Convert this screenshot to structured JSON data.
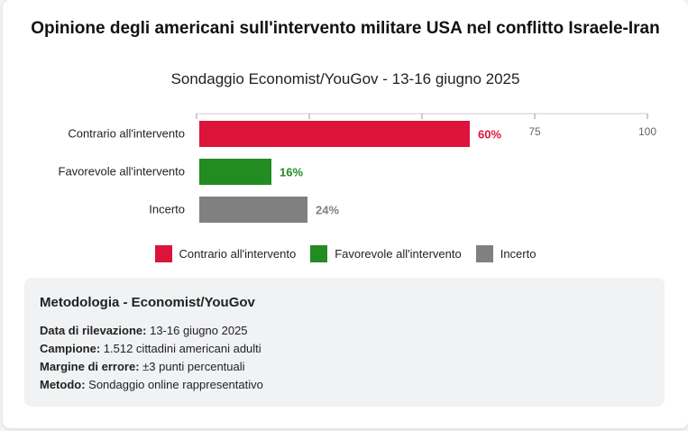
{
  "page": {
    "title": "Opinione degli americani sull'intervento militare USA nel conflitto Israele-Iran",
    "subtitle": "Sondaggio Economist/YouGov - 13-16 giugno 2025"
  },
  "chart_data": {
    "type": "bar",
    "orientation": "horizontal",
    "categories": [
      "Contrario all'intervento",
      "Favorevole all'intervento",
      "Incerto"
    ],
    "values": [
      60,
      16,
      24
    ],
    "value_labels": [
      "60%",
      "16%",
      "24%"
    ],
    "colors": [
      "#dc143c",
      "#228b22",
      "#808080"
    ],
    "xlim": [
      0,
      100
    ],
    "ticks": [
      0,
      25,
      50,
      75,
      100
    ],
    "tick_labels": [
      "",
      "",
      "",
      "75",
      "100"
    ],
    "legend": [
      "Contrario all'intervento",
      "Favorevole all'intervento",
      "Incerto"
    ],
    "legend_position": "bottom"
  },
  "methodology": {
    "heading": "Metodologia - Economist/YouGov",
    "rows": [
      {
        "label": "Data di rilevazione:",
        "value": " 13-16 giugno 2025"
      },
      {
        "label": "Campione:",
        "value": " 1.512 cittadini americani adulti"
      },
      {
        "label": "Margine di errore:",
        "value": " ±3 punti percentuali"
      },
      {
        "label": "Metodo:",
        "value": " Sondaggio online rappresentativo"
      }
    ]
  }
}
